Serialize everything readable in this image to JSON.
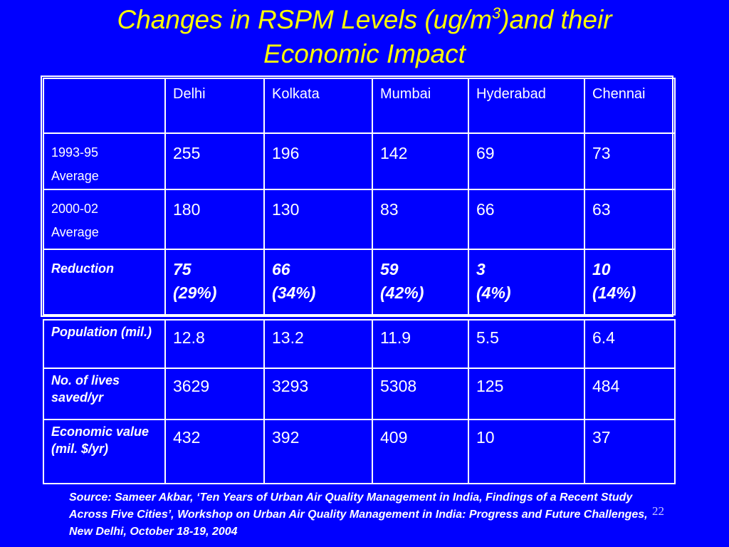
{
  "title": {
    "prefix": "Changes in RSPM Levels (ug/m",
    "superscript": "3",
    "suffix": ")and their",
    "line2": "Economic Impact"
  },
  "columns": [
    "",
    "Delhi",
    "Kolkata",
    "Mumbai",
    "Hyderabad",
    "Chennai"
  ],
  "rows_upper": [
    {
      "label_line1": "1993-95",
      "label_line2": "Average",
      "values": [
        "255",
        "196",
        "142",
        "69",
        "73"
      ]
    },
    {
      "label_line1": "2000-02",
      "label_line2": "Average",
      "values": [
        "180",
        "130",
        "83",
        "66",
        "63"
      ]
    },
    {
      "label_line1": "Reduction",
      "label_line2": "",
      "values": [
        {
          "amount": "75",
          "percent": "(29%)"
        },
        {
          "amount": "66",
          "percent": "(34%)"
        },
        {
          "amount": "59",
          "percent": "(42%)"
        },
        {
          "amount": "3",
          "percent": "(4%)"
        },
        {
          "amount": "10",
          "percent": "(14%)"
        }
      ]
    }
  ],
  "rows_lower": [
    {
      "label": "Population (mil.)",
      "values": [
        "12.8",
        "13.2",
        "11.9",
        "5.5",
        "6.4"
      ]
    },
    {
      "label": "No. of lives saved/yr",
      "values": [
        "3629",
        "3293",
        "5308",
        "125",
        "484"
      ]
    },
    {
      "label": "Economic value (mil. $/yr)",
      "values": [
        "432",
        "392",
        "409",
        "10",
        "37"
      ]
    }
  ],
  "source": "Source: Sameer Akbar, ‘Ten Years of Urban Air Quality Management in India, Findings of a Recent Study Across Five Cities’, Workshop on Urban Air Quality Management in India: Progress and Future Challenges, New Delhi, October 18-19, 2004",
  "page_number": "22",
  "colors": {
    "background": "#0000ff",
    "title": "#ffff00",
    "text": "#ffffff"
  }
}
